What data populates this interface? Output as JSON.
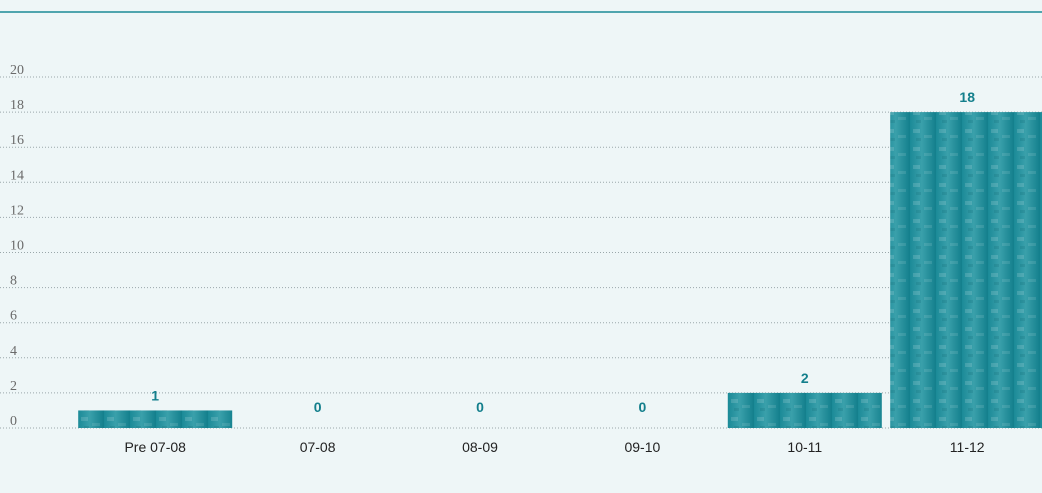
{
  "chart_data": {
    "type": "bar",
    "categories": [
      "Pre 07-08",
      "07-08",
      "08-09",
      "09-10",
      "10-11",
      "11-12"
    ],
    "values": [
      1,
      0,
      0,
      0,
      2,
      18
    ],
    "data_labels": [
      "1",
      "0",
      "0",
      "0",
      "2",
      "18"
    ],
    "ylim": [
      0,
      20
    ],
    "yticks": [
      "0",
      "2",
      "4",
      "6",
      "8",
      "10",
      "12",
      "14",
      "16",
      "18",
      "20"
    ],
    "grid": true,
    "title": "",
    "xlabel": "",
    "ylabel": ""
  },
  "colors": {
    "background": "#eef6f7",
    "bar": "#137f8c",
    "bar_highlight": "#3a9aa6",
    "data_label": "#137f8c",
    "top_rule": "#1a8a96"
  }
}
